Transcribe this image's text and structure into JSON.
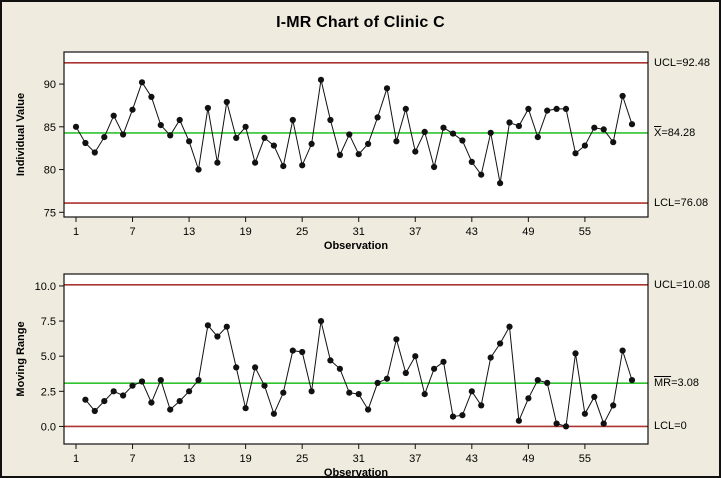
{
  "title": "I-MR Chart of Clinic C",
  "colors": {
    "background": "#efecdf",
    "plot_background": "#ffffff",
    "control_limit_line": "#ab3532",
    "center_line": "#2fc42f",
    "data_series": "#111111",
    "frame": "#111111"
  },
  "chart_data": [
    {
      "type": "line",
      "name": "individuals",
      "ylabel": "Individual Value",
      "xlabel": "Observation",
      "x_start": 1,
      "values": [
        85.0,
        83.1,
        82.0,
        83.8,
        86.3,
        84.1,
        87.0,
        90.2,
        88.5,
        85.2,
        84.0,
        85.8,
        83.3,
        80.0,
        87.2,
        80.8,
        87.9,
        83.7,
        85.0,
        80.8,
        83.7,
        82.8,
        80.4,
        85.8,
        80.5,
        83.0,
        90.5,
        85.8,
        81.7,
        84.1,
        81.8,
        83.0,
        86.1,
        89.5,
        83.3,
        87.1,
        82.1,
        84.4,
        80.3,
        84.9,
        84.2,
        83.4,
        80.9,
        79.4,
        84.3,
        78.4,
        85.5,
        85.1,
        87.1,
        83.8,
        86.9,
        87.1,
        87.1,
        81.9,
        82.8,
        84.9,
        84.7,
        83.2,
        88.6,
        85.3
      ],
      "xticks": [
        1,
        7,
        13,
        19,
        25,
        31,
        37,
        43,
        49,
        55
      ],
      "yticks": [
        75,
        80,
        85,
        90
      ],
      "ytick_labels": [
        "75",
        "80",
        "85",
        "90"
      ],
      "ylim": [
        74.45,
        93.75
      ],
      "ucl": 92.48,
      "center": 84.28,
      "lcl": 76.08,
      "limit_labels": [
        {
          "name": "ucl-label",
          "value": 92.48,
          "bar": "",
          "rest": "UCL=92.48"
        },
        {
          "name": "center-label",
          "value": 84.28,
          "bar": "X",
          "rest": "=84.28"
        },
        {
          "name": "lcl-label",
          "value": 76.08,
          "bar": "",
          "rest": "LCL=76.08"
        }
      ],
      "legend_position": "right",
      "grid": false
    },
    {
      "type": "line",
      "name": "moving-range",
      "ylabel": "Moving Range",
      "xlabel": "Observation",
      "x_start": 2,
      "values": [
        1.9,
        1.1,
        1.8,
        2.5,
        2.2,
        2.9,
        3.2,
        1.7,
        3.3,
        1.2,
        1.8,
        2.5,
        3.3,
        7.2,
        6.4,
        7.1,
        4.2,
        1.3,
        4.2,
        2.9,
        0.9,
        2.4,
        5.4,
        5.3,
        2.5,
        7.5,
        4.7,
        4.1,
        2.4,
        2.3,
        1.2,
        3.1,
        3.4,
        6.2,
        3.8,
        5.0,
        2.3,
        4.1,
        4.6,
        0.7,
        0.8,
        2.5,
        1.5,
        4.9,
        5.9,
        7.1,
        0.4,
        2.0,
        3.3,
        3.1,
        0.2,
        0.0,
        5.2,
        0.9,
        2.1,
        0.2,
        1.5,
        5.4,
        3.3
      ],
      "xticks": [
        1,
        7,
        13,
        19,
        25,
        31,
        37,
        43,
        49,
        55
      ],
      "yticks": [
        0,
        2.5,
        5,
        7.5,
        10
      ],
      "ytick_labels": [
        "0.0",
        "2.5",
        "5.0",
        "7.5",
        "10.0"
      ],
      "ylim": [
        -1.25,
        10.85
      ],
      "ucl": 10.08,
      "center": 3.08,
      "lcl": 0,
      "limit_labels": [
        {
          "name": "ucl-label",
          "value": 10.08,
          "bar": "",
          "rest": "UCL=10.08"
        },
        {
          "name": "center-label",
          "value": 3.08,
          "bar": "MR",
          "rest": "=3.08"
        },
        {
          "name": "lcl-label",
          "value": 0,
          "bar": "",
          "rest": "LCL=0"
        }
      ],
      "legend_position": "right",
      "grid": false
    }
  ]
}
